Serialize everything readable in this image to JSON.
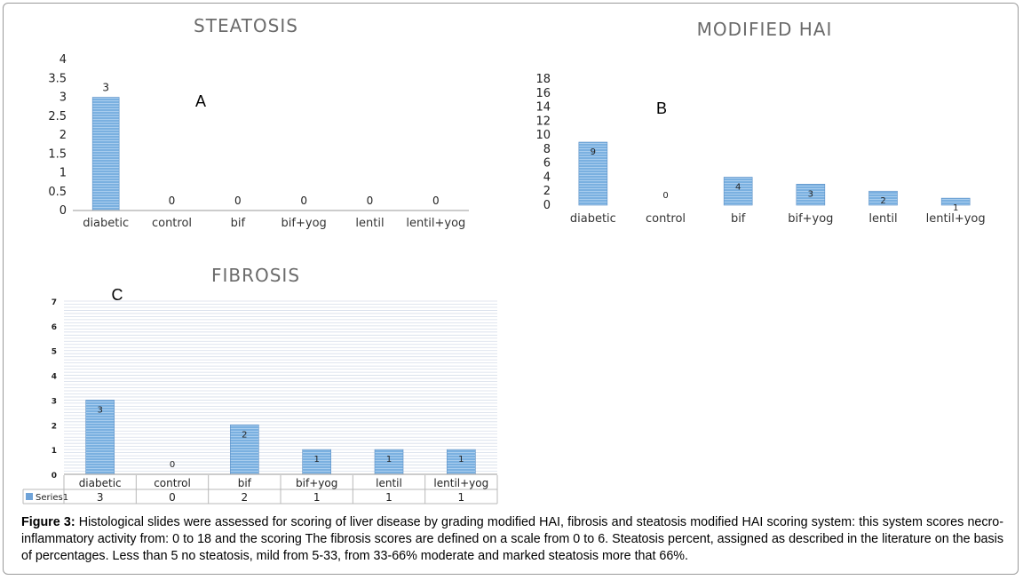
{
  "chart_data": [
    {
      "type": "bar",
      "title": "STEATOSIS",
      "panel_label": "A",
      "categories": [
        "diabetic",
        "control",
        "bif",
        "bif+yog",
        "lentil",
        "lentil+yog"
      ],
      "values": [
        3,
        0,
        0,
        0,
        0,
        0
      ],
      "data_labels": [
        "3",
        "0",
        "0",
        "0",
        "0",
        "0"
      ],
      "yticks": [
        "0",
        "0.5",
        "1",
        "1.5",
        "2",
        "2.5",
        "3",
        "3.5",
        "4"
      ],
      "ylim": [
        0,
        4
      ],
      "grid": false,
      "bar_color": "#6fa3d8"
    },
    {
      "type": "bar",
      "title": "MODIFIED HAI",
      "panel_label": "B",
      "categories": [
        "diabetic",
        "control",
        "bif",
        "bif+yog",
        "lentil",
        "lentil+yog"
      ],
      "values": [
        9,
        0,
        4,
        3,
        2,
        1
      ],
      "data_labels": [
        "9",
        "0",
        "4",
        "3",
        "2",
        "1"
      ],
      "yticks": [
        "0",
        "2",
        "4",
        "6",
        "8",
        "10",
        "12",
        "14",
        "16",
        "18"
      ],
      "ylim": [
        0,
        18
      ],
      "grid": false,
      "bar_color": "#6fa3d8"
    },
    {
      "type": "bar",
      "title": "FIBROSIS",
      "panel_label": "C",
      "categories": [
        "diabetic",
        "control",
        "bif",
        "bif+yog",
        "lentil",
        "lentil+yog"
      ],
      "values": [
        3,
        0,
        2,
        1,
        1,
        1
      ],
      "data_labels": [
        "3",
        "0",
        "2",
        "1",
        "1",
        "1"
      ],
      "yticks": [
        "0",
        "1",
        "2",
        "3",
        "4",
        "5",
        "6",
        "7"
      ],
      "ylim": [
        0,
        7
      ],
      "grid": true,
      "data_table": {
        "series_label": "Series1",
        "values": [
          "3",
          "0",
          "2",
          "1",
          "1",
          "1"
        ]
      },
      "bar_color": "#6fa3d8"
    }
  ],
  "caption": {
    "label": "Figure 3:",
    "text": " Histological slides were assessed for scoring of liver disease by grading modified HAI, fibrosis and steatosis modified HAI scoring system: this system scores necro-inflammatory activity from: 0 to 18 and the scoring The fibrosis scores are defined on a scale from 0 to 6. Steatosis percent, assigned as described in the literature on the basis of percentages. Less than 5 no steatosis, mild from 5-33, from 33-66% moderate and marked steatosis more that 66%."
  }
}
